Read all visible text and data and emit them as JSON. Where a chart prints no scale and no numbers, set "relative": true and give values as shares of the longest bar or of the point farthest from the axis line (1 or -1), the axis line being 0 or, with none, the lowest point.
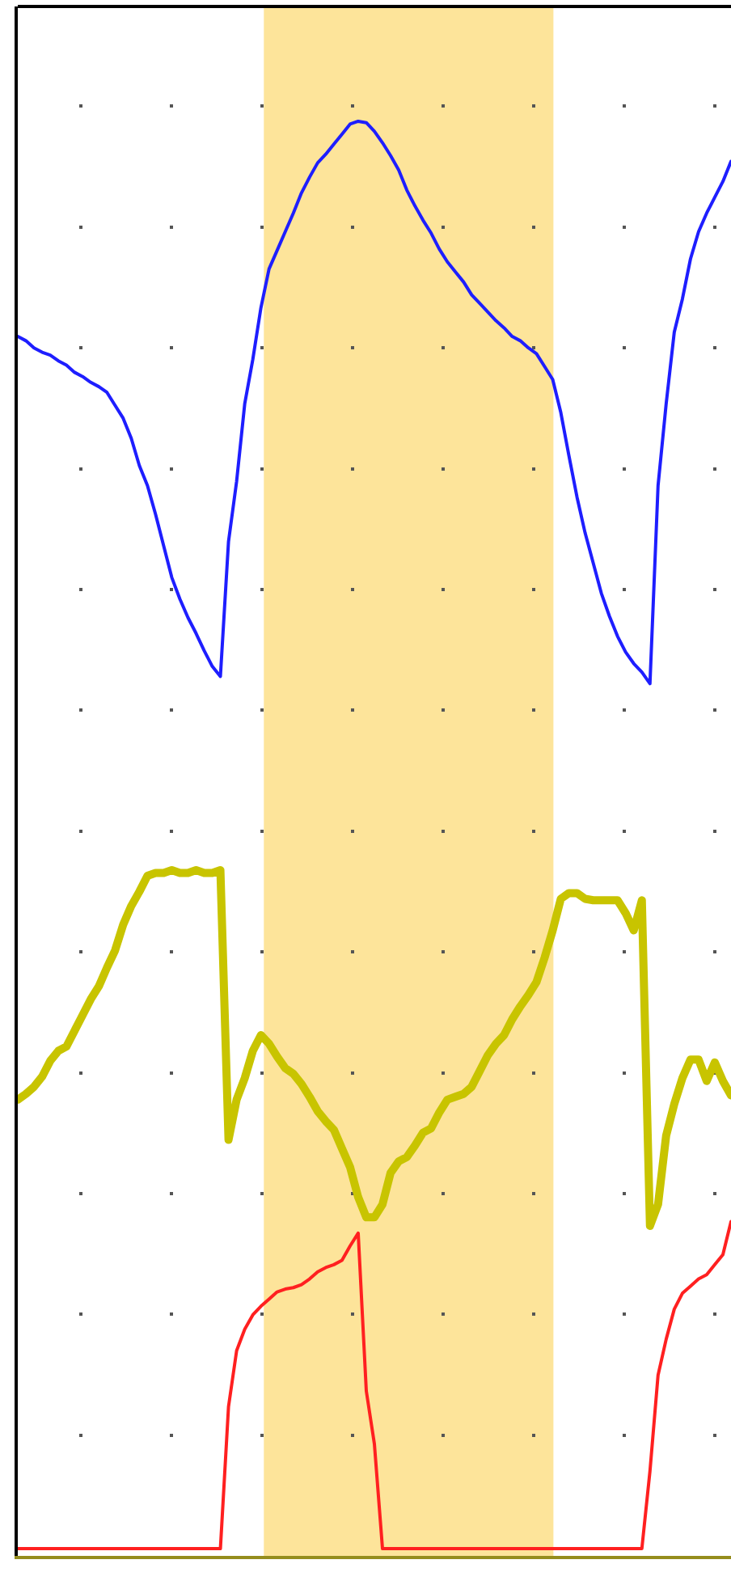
{
  "chart_data": {
    "type": "line",
    "relative": true,
    "grid": true,
    "categories": [
      null,
      null,
      null,
      null,
      null,
      null,
      null,
      null,
      null,
      null,
      null,
      null,
      null,
      null,
      null,
      null,
      null,
      null,
      null,
      null,
      null,
      null,
      null,
      null,
      null,
      null,
      null,
      null,
      null,
      null,
      null,
      null,
      null,
      null,
      null,
      null,
      null,
      null,
      null,
      null,
      null,
      null,
      null,
      null,
      null,
      null,
      null,
      null,
      null,
      null,
      null,
      null,
      null,
      null,
      null,
      null,
      null,
      null,
      null,
      null,
      null,
      null,
      null,
      null,
      null,
      null,
      null,
      null,
      null,
      null,
      null,
      null,
      null,
      null,
      null,
      null,
      null,
      null,
      null,
      null,
      null,
      null,
      null,
      null,
      null,
      null,
      null,
      null,
      null
    ],
    "series": [
      {
        "color": "#1e1eff",
        "values": [
          0.85,
          0.847,
          0.842,
          0.839,
          0.837,
          0.833,
          0.83,
          0.825,
          0.822,
          0.818,
          0.815,
          0.811,
          0.802,
          0.793,
          0.779,
          0.76,
          0.746,
          0.726,
          0.704,
          0.682,
          0.667,
          0.654,
          0.643,
          0.631,
          0.62,
          0.613,
          0.707,
          0.749,
          0.803,
          0.834,
          0.87,
          0.897,
          0.91,
          0.923,
          0.936,
          0.95,
          0.961,
          0.971,
          0.977,
          0.984,
          0.991,
          0.998,
          1.0,
          0.999,
          0.993,
          0.985,
          0.976,
          0.966,
          0.952,
          0.941,
          0.931,
          0.922,
          0.911,
          0.902,
          0.895,
          0.888,
          0.879,
          0.873,
          0.867,
          0.861,
          0.856,
          0.85,
          0.847,
          0.842,
          0.838,
          0.829,
          0.82,
          0.797,
          0.767,
          0.738,
          0.713,
          0.692,
          0.671,
          0.655,
          0.641,
          0.63,
          0.622,
          0.616,
          0.608,
          0.746,
          0.803,
          0.853,
          0.876,
          0.904,
          0.923,
          0.936,
          0.947,
          0.958,
          0.972
        ]
      },
      {
        "color": "#c8c400",
        "values": [
          0.318,
          0.322,
          0.327,
          0.334,
          0.345,
          0.352,
          0.355,
          0.366,
          0.377,
          0.388,
          0.397,
          0.41,
          0.422,
          0.44,
          0.453,
          0.463,
          0.474,
          0.476,
          0.476,
          0.478,
          0.476,
          0.476,
          0.478,
          0.476,
          0.476,
          0.478,
          0.29,
          0.318,
          0.333,
          0.352,
          0.363,
          0.357,
          0.348,
          0.34,
          0.336,
          0.329,
          0.32,
          0.31,
          0.303,
          0.297,
          0.284,
          0.271,
          0.25,
          0.236,
          0.236,
          0.245,
          0.267,
          0.275,
          0.278,
          0.286,
          0.295,
          0.298,
          0.309,
          0.318,
          0.32,
          0.322,
          0.327,
          0.338,
          0.349,
          0.357,
          0.363,
          0.374,
          0.383,
          0.391,
          0.4,
          0.417,
          0.436,
          0.458,
          0.462,
          0.462,
          0.458,
          0.457,
          0.457,
          0.457,
          0.457,
          0.448,
          0.436,
          0.457,
          0.23,
          0.245,
          0.293,
          0.315,
          0.333,
          0.346,
          0.346,
          0.331,
          0.344,
          0.331,
          0.321
        ]
      },
      {
        "color": "#ff2020",
        "values": [
          0.005,
          0.005,
          0.005,
          0.005,
          0.005,
          0.005,
          0.005,
          0.005,
          0.005,
          0.005,
          0.005,
          0.005,
          0.005,
          0.005,
          0.005,
          0.005,
          0.005,
          0.005,
          0.005,
          0.005,
          0.005,
          0.005,
          0.005,
          0.005,
          0.005,
          0.005,
          0.104,
          0.143,
          0.158,
          0.168,
          0.174,
          0.179,
          0.184,
          0.186,
          0.187,
          0.189,
          0.193,
          0.198,
          0.201,
          0.203,
          0.206,
          0.216,
          0.225,
          0.115,
          0.078,
          0.005,
          0.005,
          0.005,
          0.005,
          0.005,
          0.005,
          0.005,
          0.005,
          0.005,
          0.005,
          0.005,
          0.005,
          0.005,
          0.005,
          0.005,
          0.005,
          0.005,
          0.005,
          0.005,
          0.005,
          0.005,
          0.005,
          0.005,
          0.005,
          0.005,
          0.005,
          0.005,
          0.005,
          0.005,
          0.005,
          0.005,
          0.005,
          0.005,
          0.059,
          0.126,
          0.151,
          0.172,
          0.183,
          0.188,
          0.193,
          0.196,
          0.203,
          0.21,
          0.233
        ]
      }
    ]
  }
}
